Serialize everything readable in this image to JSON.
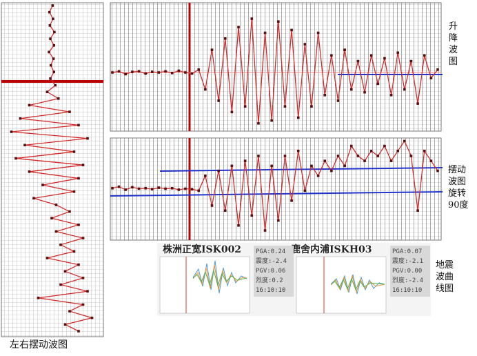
{
  "left_panel": {
    "label": "左右摆动波图",
    "values": [
      0.02,
      -0.05,
      0.03,
      -0.04,
      0.06,
      -0.03,
      0.05,
      -0.06,
      0.04,
      -0.02,
      0.05,
      -0.03,
      0.08,
      -0.1,
      0.15,
      -0.5,
      0.4,
      -0.7,
      0.6,
      -0.9,
      0.8,
      -0.6,
      0.5,
      -0.8,
      0.7,
      -0.5,
      0.6,
      -0.2,
      0.5,
      -0.4,
      0.1,
      0.4,
      0.0,
      0.6,
      0.1,
      0.7,
      0.2,
      0.5,
      -0.1,
      0.6,
      0.3,
      0.7,
      0.2,
      0.8,
      -0.3,
      0.7,
      0.4,
      0.9,
      0.3,
      0.6
    ]
  },
  "lift_panel": {
    "label": "升降波图",
    "values": [
      0,
      0.02,
      -0.03,
      0.01,
      0.02,
      -0.02,
      0.01,
      0,
      0.02,
      -0.01,
      0.03,
      0,
      -0.02,
      0.05,
      -0.3,
      0.4,
      -0.5,
      0.6,
      -0.7,
      0.8,
      -0.6,
      0.95,
      -0.9,
      0.7,
      -0.85,
      0.9,
      -0.6,
      0.75,
      -0.8,
      0.5,
      -0.6,
      0.7,
      -0.4,
      0.3,
      -0.5,
      0.4,
      -0.3,
      0.2,
      -0.35,
      0.3,
      -0.2,
      0.25,
      -0.4,
      0.35,
      -0.3,
      0.2,
      -0.55,
      0.3,
      -0.1,
      0.05
    ]
  },
  "swing_panel": {
    "label": "摆动波图旋转90度",
    "values": [
      -0.15,
      -0.12,
      -0.18,
      -0.13,
      -0.16,
      -0.15,
      -0.17,
      -0.14,
      -0.16,
      -0.15,
      -0.18,
      -0.16,
      -0.17,
      -0.2,
      0.1,
      -0.5,
      0.2,
      -0.6,
      0.3,
      -0.9,
      0.4,
      -0.7,
      0.5,
      -1.0,
      0.3,
      -0.8,
      0.5,
      -0.4,
      0.6,
      -0.2,
      0.3,
      0.1,
      0.4,
      0.2,
      0.5,
      0.3,
      0.7,
      0.5,
      0.4,
      0.6,
      0.5,
      0.7,
      0.4,
      0.6,
      0.8,
      0.5,
      -0.6,
      0.6,
      0.4,
      0.2
    ]
  },
  "quake_panel": {
    "label": "地震波曲线图",
    "left": {
      "title": "株洲正宽ISK002",
      "lines": [
        "PGA:0.24",
        "震度:-2.4",
        "PGV:0.06",
        "烈度:0.2",
        "16:10:10"
      ]
    },
    "right": {
      "title": "鹿舍内浦ISKH03",
      "lines": [
        "PGA:0.07",
        "震度:-2.1",
        "PGV:0.00",
        "烈度:-2.4",
        "16:10:10"
      ]
    }
  }
}
